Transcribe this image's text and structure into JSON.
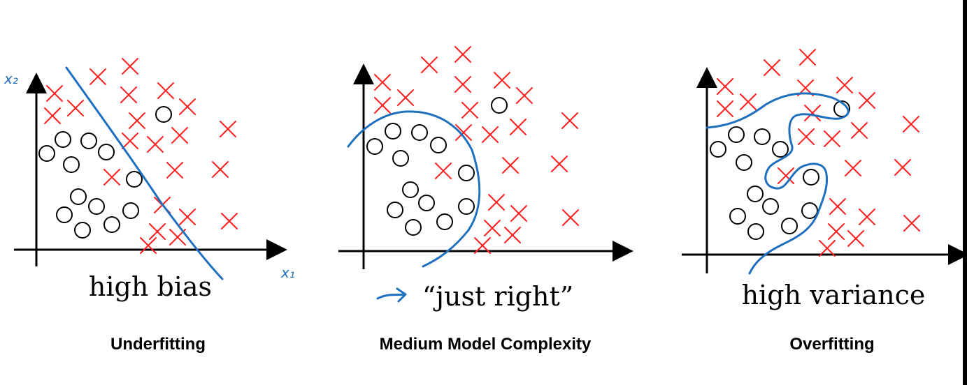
{
  "colors": {
    "cross": "#ff1f1f",
    "boundary": "#1f6fbf",
    "axis": "#000000",
    "circle_stroke": "#000000"
  },
  "panels": [
    {
      "id": "underfitting",
      "axis_labels": {
        "y": "x₂",
        "x": "x₁"
      },
      "caption": "high bias",
      "caption_prefix": "",
      "title": "Underfitting"
    },
    {
      "id": "just-right",
      "axis_labels": {
        "y": "",
        "x": ""
      },
      "caption": "“just right”",
      "caption_prefix": "→",
      "title": "Medium Model Complexity"
    },
    {
      "id": "overfitting",
      "axis_labels": {
        "y": "",
        "x": ""
      },
      "caption": "high variance",
      "caption_prefix": "",
      "title": "Overfitting"
    }
  ]
}
